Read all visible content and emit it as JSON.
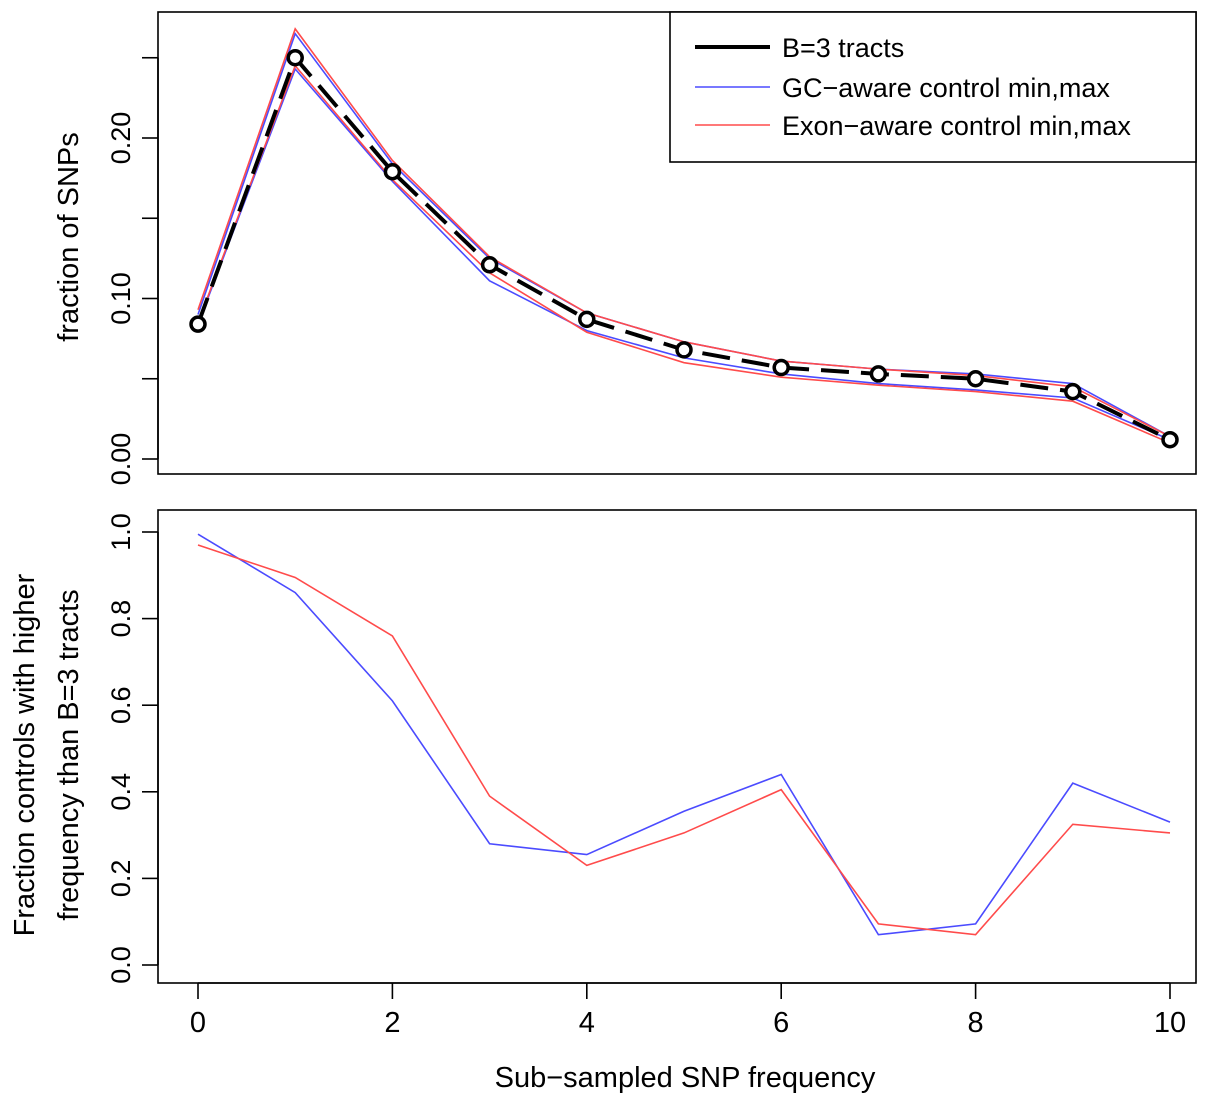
{
  "chart_data": [
    {
      "type": "line",
      "ylabel": "fraction of SNPs",
      "xlim": [
        0,
        10
      ],
      "ylim": [
        0,
        0.25
      ],
      "y_ticks": [
        "0.00",
        "0.10",
        "0.20"
      ],
      "y_minor_ticks": [
        0.05,
        0.15,
        0.25
      ],
      "x": [
        0,
        1,
        2,
        3,
        4,
        5,
        6,
        7,
        8,
        9,
        10
      ],
      "legend": {
        "position": "top-right",
        "entries": [
          "B=3 tracts",
          "GC−aware control min,max",
          "Exon−aware control min,max"
        ]
      },
      "series": [
        {
          "name": "B=3 tracts",
          "color": "#000000",
          "style": "dashed-with-circles",
          "values": [
            0.084,
            0.25,
            0.179,
            0.121,
            0.087,
            0.068,
            0.057,
            0.053,
            0.05,
            0.042,
            0.012
          ]
        },
        {
          "name": "GC−aware control min,max",
          "role": "min",
          "color": "#4b4bff",
          "values": [
            0.084,
            0.243,
            0.173,
            0.111,
            0.08,
            0.063,
            0.053,
            0.047,
            0.043,
            0.038,
            0.012
          ]
        },
        {
          "name": "GC−aware control min,max",
          "role": "max",
          "color": "#4b4bff",
          "values": [
            0.09,
            0.265,
            0.184,
            0.125,
            0.091,
            0.073,
            0.061,
            0.056,
            0.053,
            0.047,
            0.014
          ]
        },
        {
          "name": "Exon−aware control min,max",
          "role": "min",
          "color": "#ff4b4b",
          "values": [
            0.085,
            0.245,
            0.174,
            0.116,
            0.079,
            0.06,
            0.051,
            0.046,
            0.042,
            0.036,
            0.01
          ]
        },
        {
          "name": "Exon−aware control min,max",
          "role": "max",
          "color": "#ff4b4b",
          "values": [
            0.093,
            0.268,
            0.186,
            0.126,
            0.091,
            0.073,
            0.061,
            0.056,
            0.052,
            0.045,
            0.014
          ]
        }
      ]
    },
    {
      "type": "line",
      "xlabel": "Sub−sampled SNP frequency",
      "ylabel_line1": "Fraction controls with higher",
      "ylabel_line2": "frequency than B=3 tracts",
      "xlim": [
        0,
        10
      ],
      "ylim": [
        0,
        1
      ],
      "x_ticks": [
        "0",
        "2",
        "4",
        "6",
        "8",
        "10"
      ],
      "y_ticks": [
        "0.0",
        "0.2",
        "0.4",
        "0.6",
        "0.8",
        "1.0"
      ],
      "x": [
        0,
        1,
        2,
        3,
        4,
        5,
        6,
        7,
        8,
        9,
        10
      ],
      "series": [
        {
          "color": "#4b4bff",
          "values": [
            0.995,
            0.86,
            0.61,
            0.28,
            0.255,
            0.355,
            0.44,
            0.07,
            0.095,
            0.42,
            0.33
          ]
        },
        {
          "color": "#ff4b4b",
          "values": [
            0.97,
            0.895,
            0.76,
            0.39,
            0.23,
            0.305,
            0.405,
            0.095,
            0.07,
            0.325,
            0.305
          ]
        }
      ]
    }
  ]
}
